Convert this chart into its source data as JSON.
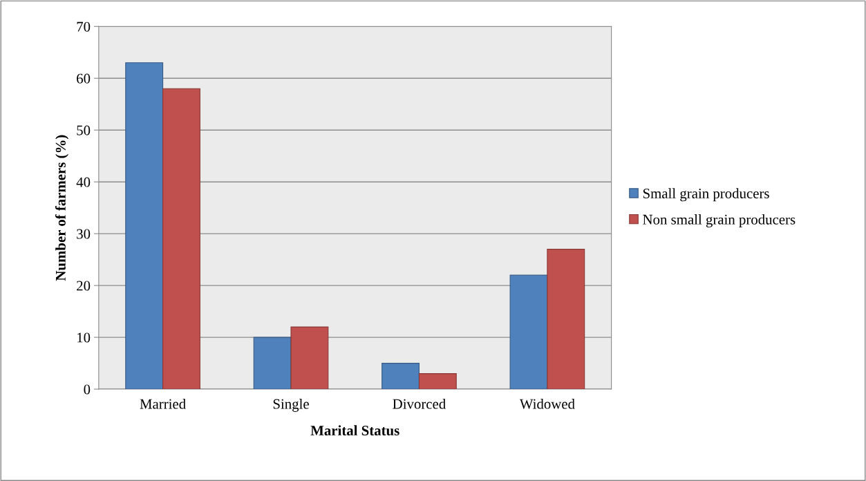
{
  "chart_data": {
    "type": "bar",
    "xlabel": "Marital Status",
    "ylabel": "Number of farmers (%)",
    "categories": [
      "Married",
      "Single",
      "Divorced",
      "Widowed"
    ],
    "series": [
      {
        "name": "Small grain producers",
        "color": "#4f81bd",
        "values": [
          63,
          10,
          5,
          22
        ]
      },
      {
        "name": "Non small grain producers",
        "color": "#c0504d",
        "values": [
          58,
          12,
          3,
          27
        ]
      }
    ],
    "ylim": [
      0,
      70
    ],
    "yticks": [
      0,
      10,
      20,
      30,
      40,
      50,
      60,
      70
    ],
    "grid": "y",
    "legend": "right"
  }
}
